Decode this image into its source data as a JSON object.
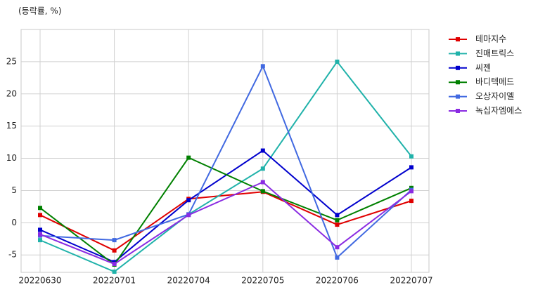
{
  "chart_data": {
    "type": "line",
    "annotation": "(등락률, %)",
    "categories": [
      "20220630",
      "20220701",
      "20220704",
      "20220705",
      "20220706",
      "20220707"
    ],
    "series": [
      {
        "name": "테마지수",
        "color": "#e00000",
        "values": [
          1.2,
          -4.3,
          3.7,
          4.8,
          -0.3,
          3.4
        ]
      },
      {
        "name": "진매트릭스",
        "color": "#20b2aa",
        "values": [
          -2.7,
          -7.6,
          1.3,
          8.4,
          25.0,
          10.3
        ]
      },
      {
        "name": "씨젠",
        "color": "#0000cd",
        "values": [
          -1.1,
          -6.1,
          3.5,
          11.2,
          1.2,
          8.6
        ]
      },
      {
        "name": "바디텍메드",
        "color": "#008000",
        "values": [
          2.3,
          -6.5,
          10.1,
          4.9,
          0.4,
          5.4
        ]
      },
      {
        "name": "오상자이엘",
        "color": "#4169e1",
        "values": [
          -2.0,
          -2.7,
          1.3,
          24.3,
          -5.4,
          5.1
        ]
      },
      {
        "name": "녹십자엠에스",
        "color": "#8a2be2",
        "values": [
          -1.8,
          -6.4,
          1.2,
          6.3,
          -3.8,
          4.9
        ]
      }
    ],
    "ylim": [
      -7.7,
      30
    ],
    "yticks": [
      -5,
      0,
      5,
      10,
      15,
      20,
      25
    ],
    "grid": true,
    "legend": "right"
  }
}
